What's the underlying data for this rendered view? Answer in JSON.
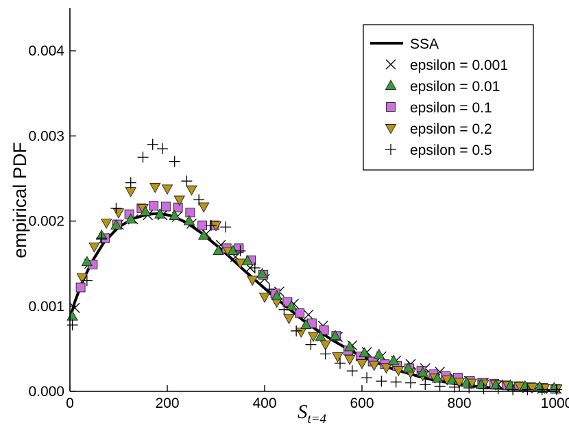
{
  "chart_data": {
    "type": "scatter",
    "title": "",
    "xlabel": "S_{t=4}",
    "xlabel_parts": {
      "main": "S",
      "sub": "t=4"
    },
    "ylabel": "empirical PDF",
    "xlim": [
      0,
      1000
    ],
    "ylim": [
      0,
      0.0045
    ],
    "xticks": [
      0,
      200,
      400,
      600,
      800,
      1000
    ],
    "xtick_labels": [
      "0",
      "200",
      "400",
      "600",
      "800",
      "1000"
    ],
    "yticks": [
      0,
      0.001,
      0.002,
      0.003,
      0.004
    ],
    "ytick_labels": [
      "0.000",
      "0.001",
      "0.002",
      "0.003",
      "0.004"
    ],
    "grid": false,
    "legend_position": "top-right",
    "series": [
      {
        "name": "SSA",
        "type": "line",
        "color": "#000000",
        "x": [
          0,
          10,
          25,
          45,
          70,
          100,
          130,
          160,
          185,
          210,
          240,
          270,
          300,
          330,
          360,
          390,
          420,
          450,
          480,
          510,
          540,
          570,
          600,
          630,
          660,
          690,
          720,
          750,
          780,
          810,
          840,
          870,
          900,
          930,
          960,
          990,
          1000
        ],
        "y": [
          0.00085,
          0.00105,
          0.00128,
          0.00152,
          0.00175,
          0.00193,
          0.00203,
          0.00208,
          0.00209,
          0.00206,
          0.00198,
          0.00186,
          0.00172,
          0.00157,
          0.00141,
          0.00126,
          0.00111,
          0.00097,
          0.00083,
          0.00071,
          0.0006,
          0.0005,
          0.00041,
          0.00034,
          0.00027,
          0.00022,
          0.00017,
          0.00013,
          0.0001,
          7.5e-05,
          5.5e-05,
          4e-05,
          3e-05,
          2e-05,
          1.4e-05,
          1e-05,
          8e-06
        ]
      },
      {
        "name": "epsilon = 0.001",
        "marker": "x",
        "color": "#000000",
        "x": [
          10,
          40,
          70,
          100,
          130,
          160,
          190,
          220,
          250,
          280,
          310,
          340,
          370,
          400,
          430,
          460,
          490,
          520,
          550,
          580,
          610,
          640,
          670,
          700,
          730,
          760,
          790,
          820,
          850,
          880,
          910,
          940,
          970,
          1000
        ],
        "y": [
          0.00098,
          0.0015,
          0.0018,
          0.00196,
          0.00202,
          0.00207,
          0.00207,
          0.00205,
          0.00197,
          0.00185,
          0.00172,
          0.00158,
          0.00145,
          0.00132,
          0.00117,
          0.00103,
          0.0009,
          0.00077,
          0.00064,
          0.00054,
          0.00046,
          0.00041,
          0.00036,
          0.00032,
          0.00027,
          0.00023,
          0.00016,
          0.00012,
          0.0001,
          8e-05,
          6e-05,
          4e-05,
          3e-05,
          3e-05
        ]
      },
      {
        "name": "epsilon = 0.01",
        "marker": "triangle-up",
        "color": "#3a9a3a",
        "x": [
          5,
          35,
          65,
          95,
          125,
          155,
          185,
          215,
          245,
          275,
          305,
          335,
          365,
          395,
          425,
          455,
          485,
          515,
          545,
          575,
          605,
          635,
          665,
          695,
          725,
          755,
          785,
          815,
          845,
          875,
          905,
          935,
          965,
          995
        ],
        "y": [
          0.00088,
          0.00152,
          0.00183,
          0.00195,
          0.00202,
          0.00211,
          0.00208,
          0.00206,
          0.002,
          0.00183,
          0.00165,
          0.00165,
          0.00153,
          0.00138,
          0.00112,
          0.001,
          0.00078,
          0.00064,
          0.00065,
          0.00052,
          0.00045,
          0.00043,
          0.00036,
          0.00027,
          0.00022,
          0.00015,
          0.00013,
          0.0001,
          8e-05,
          7e-05,
          7e-05,
          6e-05,
          5e-05,
          4e-05
        ]
      },
      {
        "name": "epsilon = 0.1",
        "marker": "square",
        "color": "#cc6fdd",
        "x": [
          22,
          47,
          72,
          97,
          122,
          147,
          172,
          197,
          222,
          247,
          272,
          297,
          322,
          347,
          372,
          397,
          422,
          447,
          472,
          497,
          522,
          547,
          572,
          597,
          622,
          647,
          672,
          697,
          722,
          747,
          772,
          797,
          822,
          847,
          872,
          897,
          922,
          947,
          972,
          997
        ],
        "y": [
          0.00122,
          0.00149,
          0.0018,
          0.00196,
          0.00208,
          0.00215,
          0.00218,
          0.00217,
          0.00216,
          0.0021,
          0.00195,
          0.00195,
          0.00168,
          0.00168,
          0.00154,
          0.00137,
          0.00115,
          0.00105,
          0.00092,
          0.0008,
          0.00072,
          0.00065,
          0.00048,
          0.00041,
          0.00035,
          0.00032,
          0.0003,
          0.00027,
          0.00024,
          0.0002,
          0.00018,
          0.00016,
          0.00012,
          0.0001,
          9e-05,
          7e-05,
          6e-05,
          5e-05,
          4e-05,
          3e-05
        ]
      },
      {
        "name": "epsilon = 0.2",
        "marker": "triangle-down",
        "color": "#b89418",
        "x": [
          25,
          50,
          75,
          100,
          125,
          150,
          175,
          200,
          225,
          250,
          275,
          300,
          325,
          350,
          375,
          400,
          425,
          450,
          475,
          500,
          525,
          550,
          575,
          600,
          625,
          650,
          675,
          700,
          725,
          750,
          775,
          800,
          825,
          850,
          875,
          900,
          925,
          950,
          975,
          1000
        ],
        "y": [
          0.00134,
          0.0017,
          0.00198,
          0.0021,
          0.00235,
          0.00215,
          0.0024,
          0.00238,
          0.00225,
          0.00237,
          0.00217,
          0.00195,
          0.00165,
          0.00151,
          0.00131,
          0.00111,
          0.00105,
          0.00086,
          0.0007,
          0.00065,
          0.00055,
          0.00041,
          0.00038,
          0.00033,
          0.00031,
          0.00028,
          0.00025,
          0.00022,
          0.00019,
          0.00016,
          0.00014,
          0.00011,
          0.0001,
          9e-05,
          8e-05,
          7e-05,
          6e-05,
          5e-05,
          4e-05,
          3e-05
        ]
      },
      {
        "name": "epsilon = 0.5",
        "marker": "plus",
        "color": "#000000",
        "x": [
          5,
          35,
          65,
          95,
          125,
          150,
          170,
          190,
          215,
          240,
          265,
          290,
          320,
          350,
          380,
          410,
          440,
          465,
          495,
          525,
          555,
          580,
          610,
          640,
          670,
          700,
          730,
          760,
          790,
          820,
          850,
          880,
          910,
          940,
          970,
          1000
        ],
        "y": [
          0.00078,
          0.0013,
          0.0018,
          0.00215,
          0.00245,
          0.00275,
          0.0029,
          0.00285,
          0.0027,
          0.00247,
          0.00225,
          0.00195,
          0.00193,
          0.00165,
          0.00145,
          0.0012,
          0.00096,
          0.00071,
          0.00055,
          0.00044,
          0.00033,
          0.00024,
          0.00016,
          0.00012,
          0.00011,
          0.0001,
          8e-05,
          6e-05,
          5e-05,
          4e-05,
          3e-05,
          3e-05,
          2e-05,
          2e-05,
          2e-05,
          2e-05
        ]
      }
    ]
  }
}
